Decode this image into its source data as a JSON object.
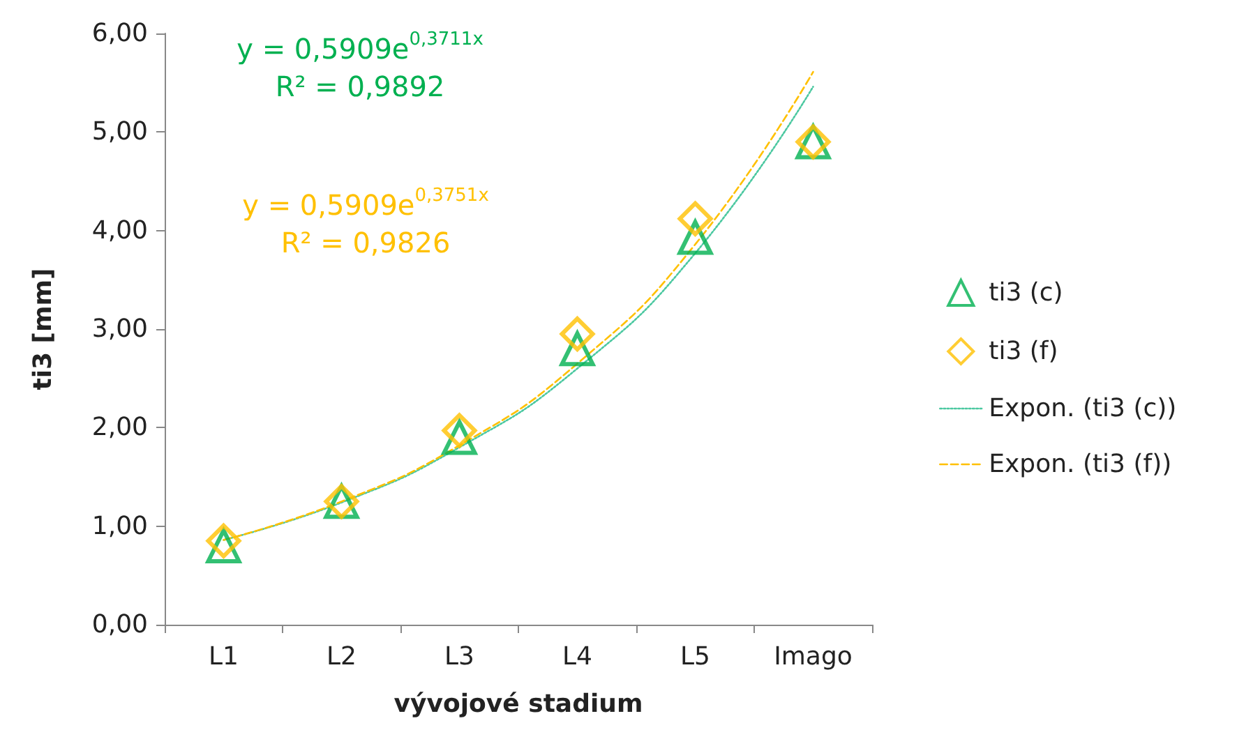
{
  "chart_data": {
    "type": "scatter",
    "xlabel": "vývojové stadium",
    "ylabel": "ti3 [mm]",
    "categories": [
      "L1",
      "L2",
      "L3",
      "L4",
      "L5",
      "Imago"
    ],
    "series": [
      {
        "name": "ti3 (c)",
        "color": "#00b050",
        "marker": "triangle",
        "values": [
          0.8,
          1.25,
          1.9,
          2.8,
          3.93,
          4.9
        ]
      },
      {
        "name": "ti3 (f)",
        "color": "#ffc000",
        "marker": "diamond",
        "values": [
          0.85,
          1.25,
          1.97,
          2.95,
          4.12,
          4.9
        ]
      },
      {
        "name": "Expon. (ti3 (c))",
        "type": "line",
        "color": "#4bc8a0",
        "line_style": "dotted",
        "x": [
          "L1",
          "L2",
          "L3",
          "L4",
          "L5",
          "Imago"
        ],
        "values": [
          0.86,
          1.24,
          1.8,
          2.6,
          3.77,
          5.46
        ]
      },
      {
        "name": "Expon. (ti3 (f))",
        "type": "line",
        "color": "#ffc000",
        "line_style": "dashed",
        "x": [
          "L1",
          "L2",
          "L3",
          "L4",
          "L5",
          "Imago"
        ],
        "values": [
          0.86,
          1.25,
          1.82,
          2.65,
          3.86,
          5.61
        ]
      }
    ],
    "ylim": [
      0,
      6
    ],
    "yticks": [
      {
        "value": 0,
        "label": "0,00"
      },
      {
        "value": 1,
        "label": "1,00"
      },
      {
        "value": 2,
        "label": "2,00"
      },
      {
        "value": 3,
        "label": "3,00"
      },
      {
        "value": 4,
        "label": "4,00"
      },
      {
        "value": 5,
        "label": "5,00"
      },
      {
        "value": 6,
        "label": "6,00"
      }
    ],
    "annotations": [
      "y = 0,5909e$^{0,3711x}$",
      "R² = 0,9892",
      "y = 0,5909e$^{0,3751x}$",
      "R² = 0,9826"
    ],
    "grid": false,
    "legend": "right"
  }
}
